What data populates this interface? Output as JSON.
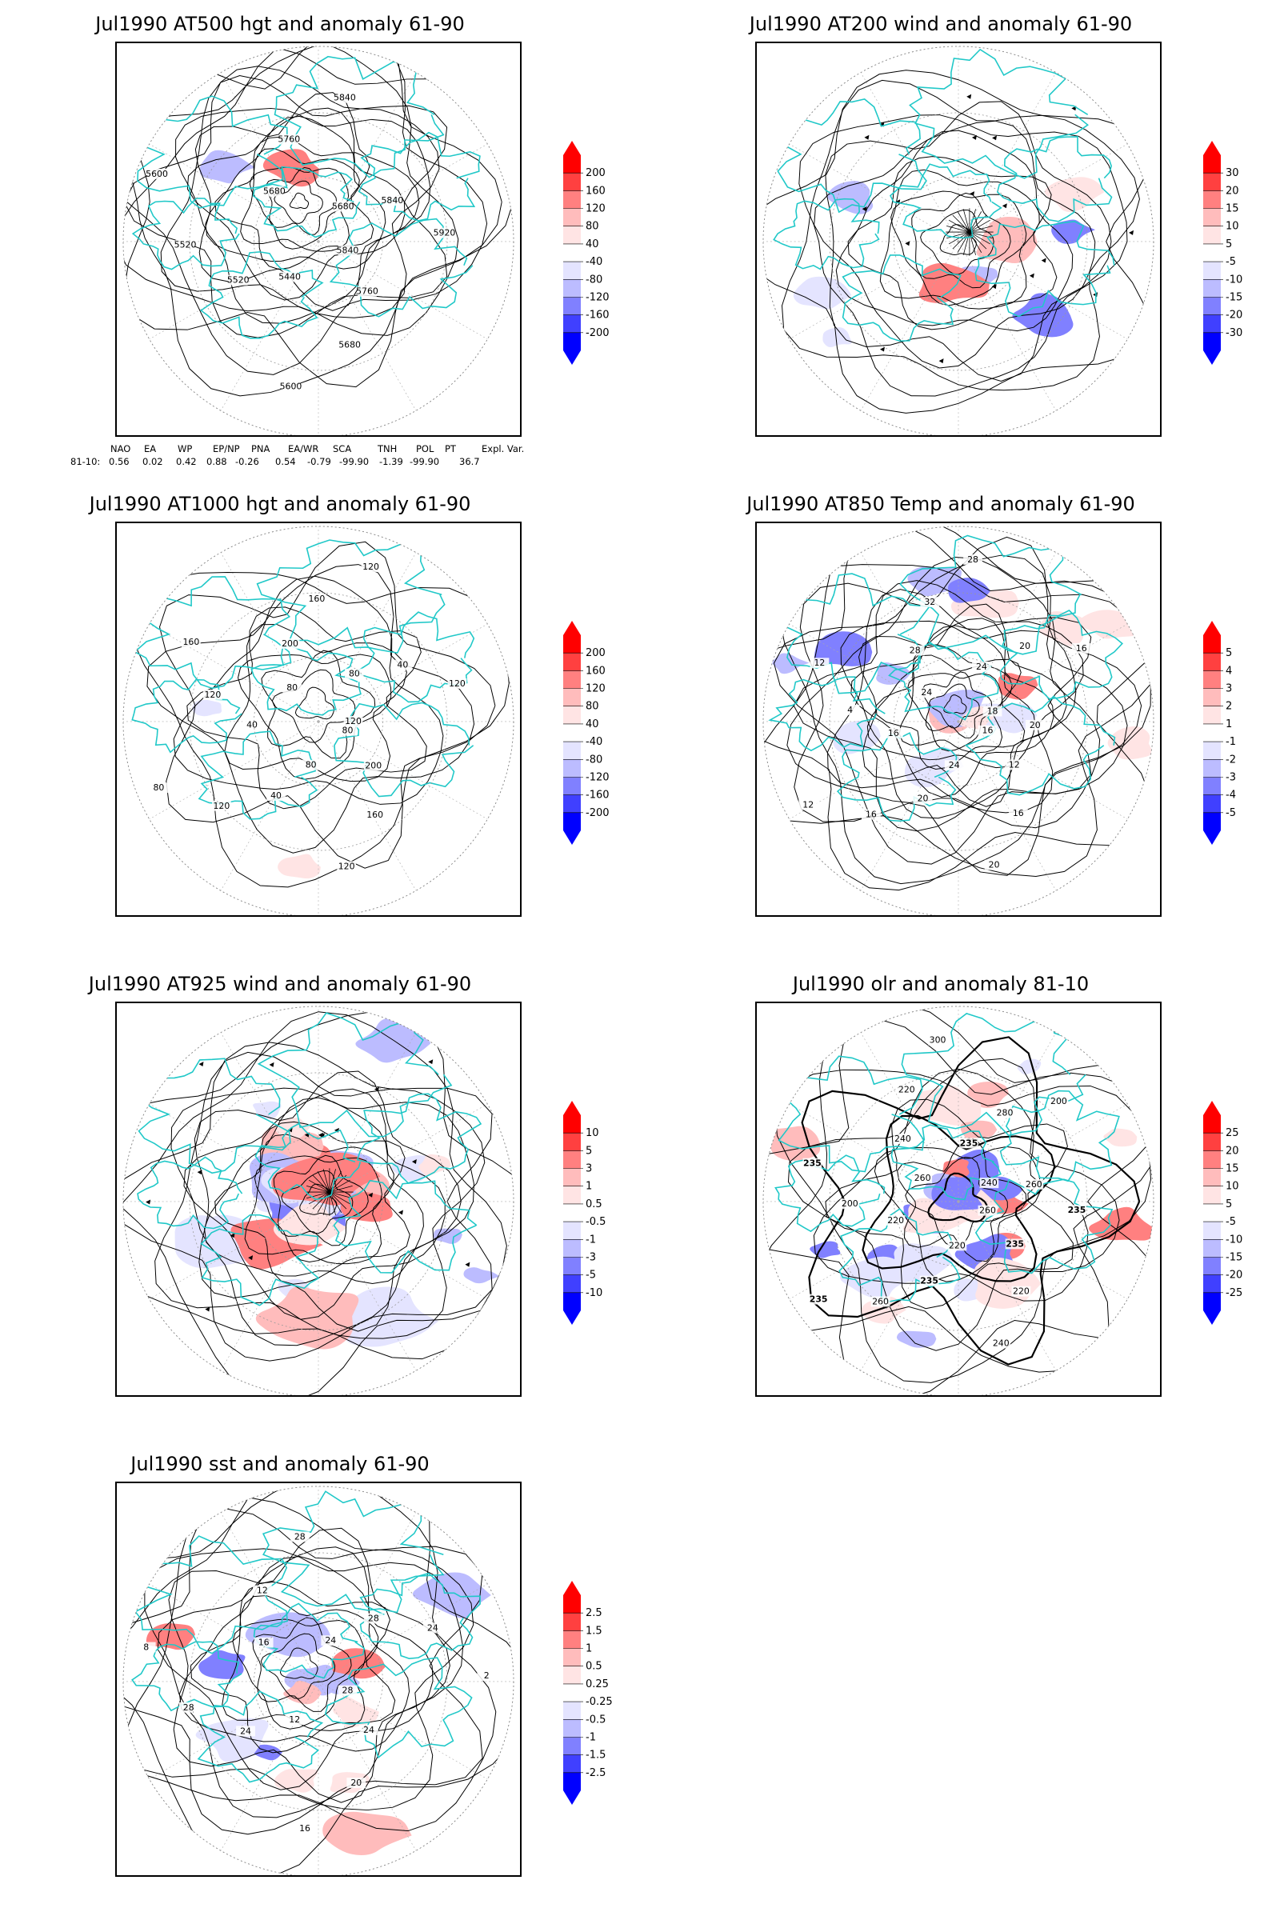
{
  "panels": [
    {
      "id": "p1",
      "title": "Jul1990 AT500 hgt and anomaly 61-90",
      "contour_labels": [
        "5840",
        "5760",
        "5680",
        "5600",
        "5440",
        "5520",
        "5520",
        "5600",
        "5680",
        "5760",
        "5840",
        "5680",
        "5840",
        "5920"
      ],
      "colorbar": [
        "200",
        "160",
        "120",
        "80",
        "40",
        "-40",
        "-80",
        "-120",
        "-160",
        "-200"
      ]
    },
    {
      "id": "p2",
      "title": "Jul1990 AT200 wind and anomaly 61-90",
      "contour_labels": [],
      "colorbar": [
        "30",
        "20",
        "15",
        "10",
        "5",
        "-5",
        "-10",
        "-15",
        "-20",
        "-30"
      ]
    },
    {
      "id": "p3",
      "title": "Jul1990 AT1000 hgt and anomaly 61-90",
      "contour_labels": [
        "80",
        "200",
        "160",
        "120",
        "80",
        "40",
        "120",
        "80",
        "40",
        "120",
        "160",
        "80",
        "200",
        "160",
        "120",
        "80",
        "40",
        "120",
        "120"
      ],
      "colorbar": [
        "200",
        "160",
        "120",
        "80",
        "40",
        "-40",
        "-80",
        "-120",
        "-160",
        "-200"
      ]
    },
    {
      "id": "p4",
      "title": "Jul1990 AT850 Temp and anomaly 61-90",
      "contour_labels": [
        "16",
        "12",
        "16",
        "20",
        "24",
        "20",
        "16",
        "12",
        "16",
        "4",
        "12",
        "24",
        "28",
        "32",
        "28",
        "24",
        "20",
        "16",
        "18",
        "20"
      ],
      "colorbar": [
        "5",
        "4",
        "3",
        "2",
        "1",
        "-1",
        "-2",
        "-3",
        "-4",
        "-5"
      ]
    },
    {
      "id": "p5",
      "title": "Jul1990 AT925 wind and anomaly 61-90",
      "contour_labels": [],
      "colorbar": [
        "10",
        "5",
        "3",
        "1",
        "0.5",
        "-0.5",
        "-1",
        "-3",
        "-5",
        "-10"
      ]
    },
    {
      "id": "p6",
      "title": "Jul1990 olr and anomaly 81-10",
      "contour_labels": [
        "260",
        "235",
        "220",
        "240",
        "220",
        "235",
        "260",
        "235",
        "220",
        "200",
        "235",
        "260",
        "240",
        "220",
        "300",
        "235",
        "280",
        "200",
        "240",
        "260",
        "235"
      ],
      "colorbar": [
        "25",
        "20",
        "15",
        "10",
        "5",
        "-5",
        "-10",
        "-15",
        "-20",
        "-25"
      ]
    },
    {
      "id": "p7",
      "title": "Jul1990 sst and anomaly 61-90",
      "contour_labels": [
        "28",
        "24",
        "20",
        "16",
        "12",
        "24",
        "28",
        "8",
        "16",
        "12",
        "28",
        "24",
        "28",
        "24",
        "2"
      ],
      "colorbar": [
        "2.5",
        "1.5",
        "1",
        "0.5",
        "0.25",
        "-0.25",
        "-0.5",
        "-1",
        "-1.5",
        "-2.5"
      ]
    }
  ],
  "teleconnection": {
    "headers": [
      "NAO",
      "EA",
      "WP",
      "EP/NP",
      "PNA",
      "EA/WR",
      "SCA",
      "TNH",
      "POL",
      "PT",
      "Expl. Var."
    ],
    "row_label": "81-10:",
    "values": [
      "0.56",
      "0.02",
      "0.42",
      "0.88",
      "-0.26",
      "0.54",
      "-0.79",
      "-99.90",
      "-1.39",
      "-99.90",
      "36.7"
    ]
  },
  "colors": {
    "coastline": "#20c8c8",
    "contour": "#000000",
    "positive": [
      "#ff0000",
      "#ff4040",
      "#ff8080",
      "#ffbcbc",
      "#ffe4e4"
    ],
    "negative": [
      "#e4e4ff",
      "#bcbcff",
      "#8080ff",
      "#4040ff",
      "#0000ff"
    ]
  }
}
